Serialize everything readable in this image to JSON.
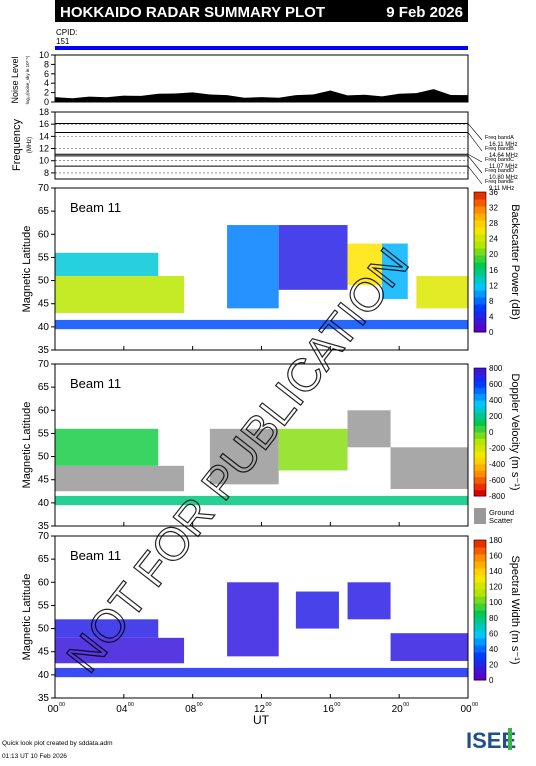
{
  "header": {
    "title": "HOKKAIDO RADAR SUMMARY PLOT",
    "date": "9 Feb 2026",
    "cpid_label": "CPID:",
    "cpid_value": "151"
  },
  "footer": {
    "credit": "Quick look plot created by sddata.adm",
    "timestamp": "01:13 UT 10 Feb 2026",
    "logo_text": "ISEE"
  },
  "watermark": "NOT FOR PUBLICATION",
  "colors": {
    "accent_bar": "#0000ff",
    "freq_band": "#000000",
    "ground_scatter": "#999999"
  },
  "chart_data": [
    {
      "type": "area",
      "name": "noise",
      "ylabel": "Noise Level",
      "ylabel_sub": "log₁₀(noise_sky in 10⁵ˉ⁵)",
      "ylim": [
        0,
        10
      ],
      "yticks": [
        "0",
        "2",
        "4",
        "6",
        "8",
        "10"
      ],
      "x": [
        0,
        1,
        2,
        3,
        4,
        5,
        6,
        7,
        8,
        9,
        10,
        11,
        12,
        13,
        14,
        15,
        16,
        17,
        18,
        19,
        20,
        21,
        22,
        23,
        24
      ],
      "values": [
        0.9,
        0.9,
        1.0,
        1.1,
        1.2,
        1.4,
        1.6,
        1.9,
        1.9,
        1.7,
        1.3,
        1.0,
        0.9,
        1.0,
        1.3,
        1.7,
        2.3,
        1.5,
        1.4,
        1.3,
        1.6,
        2.0,
        2.6,
        1.6,
        1.3
      ]
    },
    {
      "type": "line",
      "name": "frequency",
      "ylabel": "Frequency",
      "ylabel_sub": "(MHz)",
      "ylim": [
        7,
        18
      ],
      "yticks": [
        "8",
        "10",
        "12",
        "14",
        "16",
        "18"
      ],
      "gridlines": [
        8,
        10,
        12,
        14,
        16
      ],
      "bands": [
        {
          "label": "Freq bandA",
          "value": "16.11 MHz",
          "y": 16.11
        },
        {
          "label": "Freq bandB",
          "value": "14.64 MHz",
          "y": 14.64
        },
        {
          "label": "Freq bandC",
          "value": "11.07 MHz",
          "y": 11.07
        },
        {
          "label": "Freq bandD",
          "value": "10.80 MHz",
          "y": 10.8
        },
        {
          "label": "Freq bandE",
          "value": "9.11 MHz",
          "y": 9.11
        }
      ]
    },
    {
      "type": "heatmap",
      "name": "power",
      "beam_label": "Beam 11",
      "ylabel": "Magnetic Latitude",
      "ylim": [
        35,
        70
      ],
      "yticks": [
        "35",
        "40",
        "45",
        "50",
        "55",
        "60",
        "65",
        "70"
      ],
      "colorbar_label": "Backscatter Power (dB)",
      "colorbar_ticks": [
        "0",
        "4",
        "8",
        "12",
        "16",
        "20",
        "24",
        "28",
        "32",
        "36"
      ],
      "colorbar_range": [
        0,
        36
      ],
      "bands": [
        {
          "t0": 0,
          "t1": 7.5,
          "lat0": 43,
          "lat1": 51,
          "value": 22
        },
        {
          "t0": 0,
          "t1": 6,
          "lat0": 51,
          "lat1": 56,
          "value": 12
        },
        {
          "t0": 0,
          "t1": 24,
          "lat0": 39.5,
          "lat1": 41.5,
          "value": 6
        },
        {
          "t0": 10,
          "t1": 13,
          "lat0": 44,
          "lat1": 62,
          "value": 8
        },
        {
          "t0": 13,
          "t1": 17,
          "lat0": 48,
          "lat1": 62,
          "value": 3
        },
        {
          "t0": 17,
          "t1": 19,
          "lat0": 49,
          "lat1": 58,
          "value": 26
        },
        {
          "t0": 19,
          "t1": 20.5,
          "lat0": 46,
          "lat1": 58,
          "value": 10
        },
        {
          "t0": 21,
          "t1": 24,
          "lat0": 44,
          "lat1": 51,
          "value": 24
        }
      ]
    },
    {
      "type": "heatmap",
      "name": "velocity",
      "beam_label": "Beam 11",
      "ylabel": "Magnetic Latitude",
      "ylim": [
        35,
        70
      ],
      "yticks": [
        "35",
        "40",
        "45",
        "50",
        "55",
        "60",
        "65",
        "70"
      ],
      "colorbar_label": "Doppler Velocity (m s⁻¹)",
      "colorbar_ticks": [
        "800",
        "600",
        "400",
        "200",
        "0",
        "-200",
        "-400",
        "-600",
        "-800"
      ],
      "colorbar_range": [
        -800,
        800
      ],
      "ground_label": "Ground",
      "ground_label2": "Scatter",
      "bands": [
        {
          "t0": 0,
          "t1": 7.5,
          "lat0": 42.5,
          "lat1": 48,
          "value": "ground"
        },
        {
          "t0": 0,
          "t1": 6,
          "lat0": 48,
          "lat1": 56,
          "value": 50
        },
        {
          "t0": 0,
          "t1": 24,
          "lat0": 39.5,
          "lat1": 41.5,
          "value": 150
        },
        {
          "t0": 9,
          "t1": 13,
          "lat0": 44,
          "lat1": 56,
          "value": "ground"
        },
        {
          "t0": 13,
          "t1": 17,
          "lat0": 47,
          "lat1": 56,
          "value": -100
        },
        {
          "t0": 17,
          "t1": 19.5,
          "lat0": 52,
          "lat1": 60,
          "value": "ground"
        },
        {
          "t0": 19.5,
          "t1": 24,
          "lat0": 43,
          "lat1": 52,
          "value": "ground"
        }
      ]
    },
    {
      "type": "heatmap",
      "name": "width",
      "beam_label": "Beam 11",
      "ylabel": "Magnetic Latitude",
      "ylim": [
        35,
        70
      ],
      "yticks": [
        "35",
        "40",
        "45",
        "50",
        "55",
        "60",
        "65",
        "70"
      ],
      "colorbar_label": "Spectral Width (m s⁻¹)",
      "colorbar_ticks": [
        "0",
        "20",
        "40",
        "60",
        "80",
        "100",
        "120",
        "140",
        "160",
        "180"
      ],
      "colorbar_range": [
        0,
        180
      ],
      "xlabel": "UT",
      "xticks": [
        "00",
        "04",
        "08",
        "12",
        "16",
        "20",
        "00"
      ],
      "xtick_sup": "00",
      "bands": [
        {
          "t0": 0,
          "t1": 7.5,
          "lat0": 42.5,
          "lat1": 48,
          "value": 10
        },
        {
          "t0": 0,
          "t1": 6,
          "lat0": 48,
          "lat1": 52,
          "value": 15
        },
        {
          "t0": 0,
          "t1": 24,
          "lat0": 39.5,
          "lat1": 41.5,
          "value": 20
        },
        {
          "t0": 10,
          "t1": 13,
          "lat0": 44,
          "lat1": 60,
          "value": 12
        },
        {
          "t0": 14,
          "t1": 16.5,
          "lat0": 50,
          "lat1": 58,
          "value": 15
        },
        {
          "t0": 17,
          "t1": 19.5,
          "lat0": 52,
          "lat1": 60,
          "value": 14
        },
        {
          "t0": 19.5,
          "t1": 24,
          "lat0": 43,
          "lat1": 49,
          "value": 12
        }
      ]
    }
  ]
}
